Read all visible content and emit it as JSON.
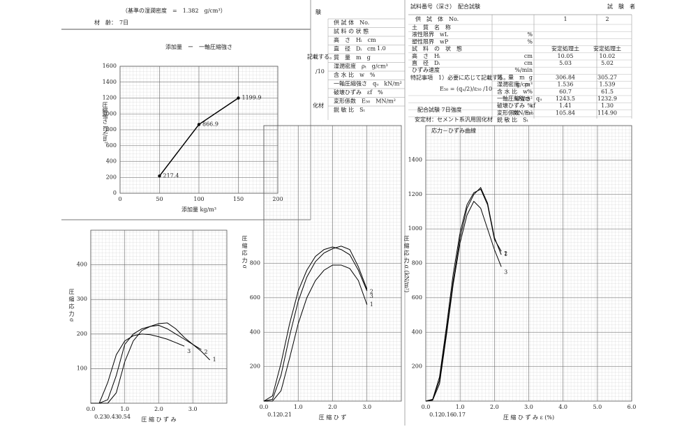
{
  "header": {
    "density_note": "（基準の湿潤密度　=　1.382　g/cm³）",
    "age": "材　齢：　7日"
  },
  "middle_table": {
    "title": "験",
    "rows": [
      "供 試 体　No.",
      "試 料 の 状 態",
      "高　さ　Hᵢ　cm",
      "直　径　Dᵢ　cm",
      "質　量　m　g",
      "湿潤密度　ρₜ　g/cm³",
      "含 水 比　w　%",
      "一軸圧縮強さ　qᵤ　kN/m²",
      "破壊ひずみ　εf　%",
      "変形係数　E₅₀　MN/m²",
      "鋭 敏 比　Sₜ"
    ],
    "speed": "1.0",
    "fragments": [
      "記載する。",
      "/10",
      "化材"
    ]
  },
  "table": {
    "title": "試料番号（深さ）　配合試験",
    "tester": "試　験　者",
    "header": [
      "供　試　体　No.",
      "1",
      "2"
    ],
    "rows": [
      {
        "label": "土　質　名　称"
      },
      {
        "label": "液性限界　wL",
        "unit": "%"
      },
      {
        "label": "塑性限界　wP",
        "unit": "%"
      },
      {
        "label": "試　料　の　状　態",
        "values": [
          "安定処理土",
          "安定処理土"
        ]
      },
      {
        "label": "高　さ　Hᵢ",
        "unit": "cm",
        "values": [
          "10.05",
          "10.02"
        ]
      },
      {
        "label": "直　径　Dᵢ",
        "unit": "cm",
        "values": [
          "5.03",
          "5.02"
        ]
      },
      {
        "label": "ひずみ速度",
        "unit": "%/min"
      },
      {
        "label": "質　量　m",
        "unit": "g",
        "values": [
          "306.84",
          "305.27"
        ]
      },
      {
        "label": "湿潤密度　ρₜ",
        "unit": "g/cm³",
        "values": [
          "1.536",
          "1.539"
        ]
      },
      {
        "label": "含 水 比　w",
        "unit": "%",
        "values": [
          "60.7",
          "61.5"
        ]
      },
      {
        "label": "一軸圧縮強さ　qᵤ",
        "unit": "kN/m²",
        "values": [
          "1243.5",
          "1232.9"
        ]
      },
      {
        "label": "破壊ひずみ　εf",
        "unit": "%",
        "values": [
          "1.41",
          "1.30"
        ]
      },
      {
        "label": "変形係数　E₅₀",
        "unit": "MN/m²",
        "values": [
          "105.84",
          "114.90"
        ]
      },
      {
        "label": "鋭 敏 比　Sₜ"
      }
    ],
    "note": "特記事項　1）必要に応じて記載する。",
    "formula": "E₅₀ = (qᵤ/2)/ε₅₀ /10",
    "mix": "配合試験 7日強度",
    "stabilizer": "安定材：セメント系汎用固化材"
  },
  "chart_data": [
    {
      "type": "line",
      "title": "添加量　ー　一軸圧縮強さ",
      "xlabel": "添加量 kg/m³",
      "ylabel": "圧縮強さ kN/m²",
      "x": [
        50,
        100,
        150
      ],
      "values": [
        217.4,
        866.9,
        1199.9
      ],
      "xlim": [
        0,
        200
      ],
      "xticks": [
        0,
        50,
        100,
        150,
        200
      ],
      "ylim": [
        0,
        1600
      ],
      "yticks": [
        0,
        200,
        400,
        600,
        800,
        1000,
        1200,
        1400,
        1600
      ],
      "color": "#000000"
    },
    {
      "type": "stress",
      "xlabel": "圧 縮 ひ ず み",
      "ylabel": "圧 縮 応 力 σ",
      "x": [
        0,
        0.25,
        0.5,
        0.75,
        1,
        1.25,
        1.5,
        1.75,
        2,
        2.25,
        2.5,
        2.75,
        3,
        3.25,
        3.5
      ],
      "series": [
        {
          "name": "1",
          "color": "#000000",
          "values": [
            0,
            0,
            0,
            30,
            120,
            180,
            210,
            222,
            230,
            232,
            215,
            190,
            170,
            150,
            125
          ]
        },
        {
          "name": "2",
          "color": "#000000",
          "values": [
            0,
            0,
            10,
            80,
            170,
            200,
            215,
            222,
            225,
            215,
            200,
            185,
            170,
            155,
            null
          ]
        },
        {
          "name": "3",
          "color": "#000000",
          "values": [
            0,
            0,
            60,
            140,
            180,
            195,
            200,
            198,
            192,
            185,
            175,
            165,
            null,
            null,
            null
          ]
        }
      ],
      "annotations": [
        "0.23",
        "0.43",
        "0.54"
      ],
      "xlim": [
        0,
        4
      ],
      "xticks": [
        {
          "value": 0,
          "label": "0.0"
        },
        {
          "value": 1,
          "label": "1.0"
        },
        {
          "value": 2,
          "label": "2.0"
        },
        {
          "value": 3,
          "label": "3.0"
        }
      ],
      "ylim": [
        0,
        500
      ],
      "yticks": [
        100,
        200,
        300,
        400
      ]
    },
    {
      "type": "stress",
      "xlabel": "圧 縮 ひ ず",
      "ylabel": "圧 縮 応 力 σ",
      "x": [
        0,
        0.25,
        0.5,
        0.75,
        1,
        1.25,
        1.5,
        1.75,
        2,
        2.25,
        2.5,
        2.75,
        3
      ],
      "series": [
        {
          "name": "1",
          "color": "#000000",
          "values": [
            0,
            0,
            60,
            250,
            450,
            600,
            700,
            760,
            790,
            790,
            770,
            700,
            560
          ]
        },
        {
          "name": "2",
          "color": "#000000",
          "values": [
            0,
            10,
            150,
            380,
            580,
            720,
            810,
            860,
            885,
            900,
            880,
            780,
            650
          ]
        },
        {
          "name": "3",
          "color": "#000000",
          "values": [
            0,
            30,
            220,
            450,
            640,
            760,
            840,
            880,
            895,
            880,
            850,
            760,
            640
          ]
        }
      ],
      "annotations": [
        "0.12",
        "0.21"
      ],
      "xlim": [
        0,
        4
      ],
      "xticks": [
        {
          "value": 0,
          "label": "0.0"
        },
        {
          "value": 1,
          "label": "1.0"
        },
        {
          "value": 2,
          "label": "2.0"
        },
        {
          "value": 3,
          "label": "3.0"
        }
      ],
      "ylim": [
        0,
        1600
      ],
      "yticks": [
        200,
        400,
        600,
        800
      ]
    },
    {
      "type": "stress",
      "title": "応力－ひずみ曲線",
      "xlabel": "圧 縮 ひ ず み ε (%)",
      "ylabel": "圧 縮 応 力 σ (kN/m²)",
      "x": [
        0,
        0.2,
        0.4,
        0.6,
        0.8,
        1,
        1.2,
        1.4,
        1.6,
        1.8,
        2,
        2.2
      ],
      "series": [
        {
          "name": "1",
          "color": "#000000",
          "values": [
            0,
            10,
            120,
            400,
            700,
            950,
            1120,
            1200,
            1240,
            1150,
            950,
            850
          ]
        },
        {
          "name": "2",
          "color": "#000000",
          "values": [
            0,
            10,
            140,
            430,
            740,
            980,
            1140,
            1210,
            1230,
            1140,
            940,
            870
          ]
        },
        {
          "name": "3",
          "color": "#000000",
          "values": [
            0,
            5,
            100,
            380,
            680,
            920,
            1080,
            1160,
            1120,
            1000,
            880,
            780
          ]
        }
      ],
      "annotations": [
        "0.12",
        "0.16",
        "0.17"
      ],
      "xlim": [
        0,
        6
      ],
      "xticks": [
        {
          "value": 0,
          "label": "0.0"
        },
        {
          "value": 1,
          "label": "1.0"
        },
        {
          "value": 2,
          "label": "2.0"
        },
        {
          "value": 3,
          "label": "3.0"
        },
        {
          "value": 4,
          "label": "4.0"
        },
        {
          "value": 5,
          "label": "5.0"
        },
        {
          "value": 6,
          "label": "6.0"
        }
      ],
      "ylim": [
        0,
        1600
      ],
      "yticks": [
        200,
        400,
        600,
        800,
        1000,
        1200,
        1400
      ]
    }
  ]
}
